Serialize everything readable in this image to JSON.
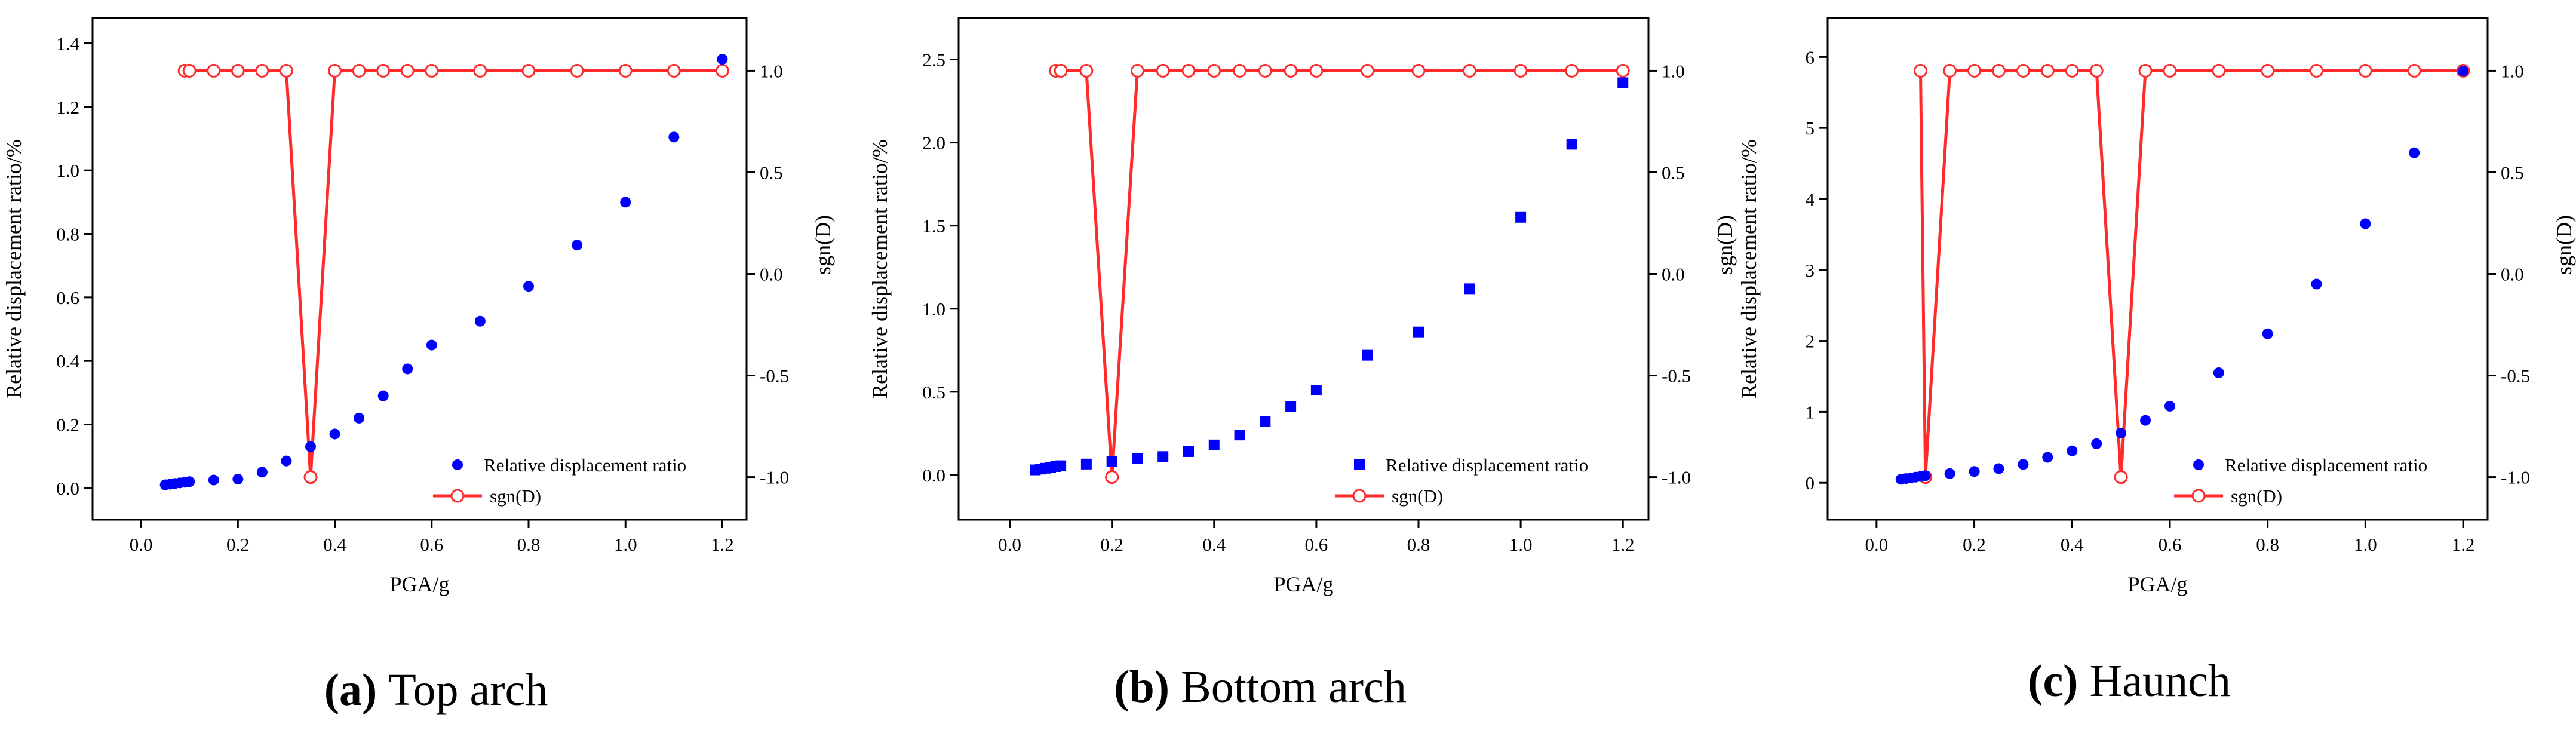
{
  "colors": {
    "series1": "#0000ff",
    "series2": "#ff2a2a",
    "axis": "#000000"
  },
  "chart_data": [
    {
      "type": "scatter",
      "panel": "a",
      "caption_letter": "(a)",
      "caption_text": " Top arch",
      "xlabel": "PGA/g",
      "ylabel": "Relative displacement ratio/%",
      "y2label": "sgn(D)",
      "xlim": [
        -0.1,
        1.25
      ],
      "ylim": [
        -0.1,
        1.48
      ],
      "y2lim": [
        -1.21,
        1.26
      ],
      "xticks": [
        0.0,
        0.2,
        0.4,
        0.6,
        0.8,
        1.0,
        1.2
      ],
      "xtick_labels": [
        "0.0",
        "0.2",
        "0.4",
        "0.6",
        "0.8",
        "1.0",
        "1.2"
      ],
      "yticks": [
        0.0,
        0.2,
        0.4,
        0.6,
        0.8,
        1.0,
        1.2,
        1.4
      ],
      "ytick_labels": [
        "0.0",
        "0.2",
        "0.4",
        "0.6",
        "0.8",
        "1.0",
        "1.2",
        "1.4"
      ],
      "y2ticks": [
        -1.0,
        -0.5,
        0.0,
        0.5,
        1.0
      ],
      "y2tick_labels": [
        "-1.0",
        "-0.5",
        "0.0",
        "0.5",
        "1.0"
      ],
      "legend_position": "bottom-right",
      "series": [
        {
          "name": "Relative displacement ratio",
          "marker": "circle",
          "axis": "left",
          "x": [
            0.05,
            0.06,
            0.07,
            0.08,
            0.09,
            0.1,
            0.15,
            0.2,
            0.25,
            0.3,
            0.35,
            0.4,
            0.45,
            0.5,
            0.55,
            0.6,
            0.7,
            0.8,
            0.9,
            1.0,
            1.1,
            1.2
          ],
          "y": [
            0.01,
            0.012,
            0.014,
            0.016,
            0.018,
            0.02,
            0.025,
            0.028,
            0.05,
            0.085,
            0.13,
            0.17,
            0.22,
            0.29,
            0.375,
            0.45,
            0.525,
            0.635,
            0.765,
            0.9,
            1.105,
            1.35
          ]
        },
        {
          "name": "sgn(D)",
          "marker": "open-circle",
          "axis": "right",
          "x": [
            0.09,
            0.1,
            0.15,
            0.2,
            0.25,
            0.3,
            0.35,
            0.4,
            0.45,
            0.5,
            0.55,
            0.6,
            0.7,
            0.8,
            0.9,
            1.0,
            1.1,
            1.2
          ],
          "y": [
            1,
            1,
            1,
            1,
            1,
            1,
            -1,
            1,
            1,
            1,
            1,
            1,
            1,
            1,
            1,
            1,
            1,
            1
          ]
        }
      ]
    },
    {
      "type": "scatter",
      "panel": "b",
      "caption_letter": "(b)",
      "caption_text": " Bottom arch",
      "xlabel": "PGA/g",
      "ylabel": "Relative displacement ratio/%",
      "y2label": "sgn(D)",
      "xlim": [
        -0.1,
        1.25
      ],
      "ylim": [
        -0.27,
        2.75
      ],
      "y2lim": [
        -1.21,
        1.26
      ],
      "xticks": [
        0.0,
        0.2,
        0.4,
        0.6,
        0.8,
        1.0,
        1.2
      ],
      "xtick_labels": [
        "0.0",
        "0.2",
        "0.4",
        "0.6",
        "0.8",
        "1.0",
        "1.2"
      ],
      "yticks": [
        0.0,
        0.5,
        1.0,
        1.5,
        2.0,
        2.5
      ],
      "ytick_labels": [
        "0.0",
        "0.5",
        "1.0",
        "1.5",
        "2.0",
        "2.5"
      ],
      "y2ticks": [
        -1.0,
        -0.5,
        0.0,
        0.5,
        1.0
      ],
      "y2tick_labels": [
        "-1.0",
        "-0.5",
        "0.0",
        "0.5",
        "1.0"
      ],
      "legend_position": "bottom-right",
      "series": [
        {
          "name": "Relative displacement ratio",
          "marker": "square",
          "axis": "left",
          "x": [
            0.05,
            0.06,
            0.07,
            0.08,
            0.09,
            0.1,
            0.15,
            0.2,
            0.25,
            0.3,
            0.35,
            0.4,
            0.45,
            0.5,
            0.55,
            0.6,
            0.7,
            0.8,
            0.9,
            1.0,
            1.1,
            1.2
          ],
          "y": [
            0.03,
            0.035,
            0.04,
            0.045,
            0.05,
            0.055,
            0.065,
            0.08,
            0.1,
            0.11,
            0.14,
            0.18,
            0.24,
            0.32,
            0.41,
            0.51,
            0.72,
            0.86,
            1.12,
            1.55,
            1.99,
            2.36
          ]
        },
        {
          "name": "sgn(D)",
          "marker": "open-circle",
          "axis": "right",
          "x": [
            0.09,
            0.1,
            0.15,
            0.2,
            0.25,
            0.3,
            0.35,
            0.4,
            0.45,
            0.5,
            0.55,
            0.6,
            0.7,
            0.8,
            0.9,
            1.0,
            1.1,
            1.2
          ],
          "y": [
            1,
            1,
            1,
            -1,
            1,
            1,
            1,
            1,
            1,
            1,
            1,
            1,
            1,
            1,
            1,
            1,
            1,
            1
          ]
        }
      ]
    },
    {
      "type": "scatter",
      "panel": "c",
      "caption_letter": "(c)",
      "caption_text": " Haunch",
      "xlabel": "PGA/g",
      "ylabel": "Relative displacement ratio/%",
      "y2label": "sgn(D)",
      "xlim": [
        -0.1,
        1.25
      ],
      "ylim": [
        -0.52,
        6.55
      ],
      "y2lim": [
        -1.21,
        1.26
      ],
      "xticks": [
        0.0,
        0.2,
        0.4,
        0.6,
        0.8,
        1.0,
        1.2
      ],
      "xtick_labels": [
        "0.0",
        "0.2",
        "0.4",
        "0.6",
        "0.8",
        "1.0",
        "1.2"
      ],
      "yticks": [
        0,
        1,
        2,
        3,
        4,
        5,
        6
      ],
      "ytick_labels": [
        "0",
        "1",
        "2",
        "3",
        "4",
        "5",
        "6"
      ],
      "y2ticks": [
        -1.0,
        -0.5,
        0.0,
        0.5,
        1.0
      ],
      "y2tick_labels": [
        "-1.0",
        "-0.5",
        "0.0",
        "0.5",
        "1.0"
      ],
      "legend_position": "bottom-right",
      "series": [
        {
          "name": "Relative displacement ratio",
          "marker": "circle",
          "axis": "left",
          "x": [
            0.05,
            0.06,
            0.07,
            0.08,
            0.09,
            0.1,
            0.15,
            0.2,
            0.25,
            0.3,
            0.35,
            0.4,
            0.45,
            0.5,
            0.55,
            0.6,
            0.7,
            0.8,
            0.9,
            1.0,
            1.1,
            1.2
          ],
          "y": [
            0.05,
            0.06,
            0.07,
            0.08,
            0.09,
            0.1,
            0.13,
            0.16,
            0.2,
            0.26,
            0.36,
            0.45,
            0.55,
            0.7,
            0.88,
            1.08,
            1.55,
            2.1,
            2.8,
            3.65,
            4.65,
            5.8
          ]
        },
        {
          "name": "sgn(D)",
          "marker": "open-circle",
          "axis": "right",
          "x": [
            0.09,
            0.1,
            0.15,
            0.2,
            0.25,
            0.3,
            0.35,
            0.4,
            0.45,
            0.5,
            0.55,
            0.6,
            0.7,
            0.8,
            0.9,
            1.0,
            1.1,
            1.2
          ],
          "y": [
            1,
            -1,
            1,
            1,
            1,
            1,
            1,
            1,
            1,
            -1,
            1,
            1,
            1,
            1,
            1,
            1,
            1,
            1
          ]
        }
      ]
    }
  ]
}
